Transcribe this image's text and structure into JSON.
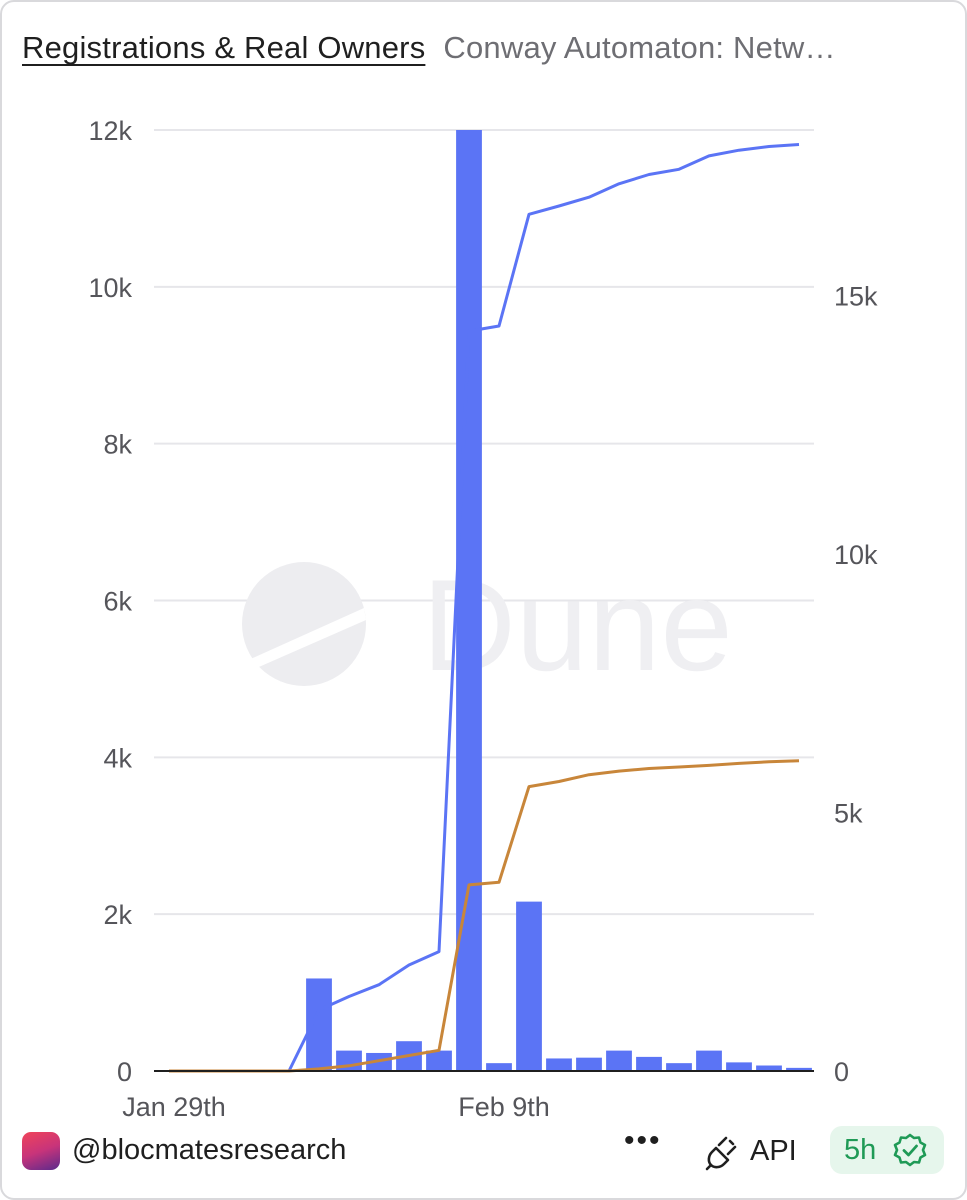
{
  "tabs": {
    "active": "Registrations & Real Owners",
    "inactive": "Conway Automaton: Netw…"
  },
  "watermark": "Dune",
  "footer": {
    "handle": "@blocmatesresearch",
    "more": "•••",
    "api_label": "API",
    "freshness": "5h",
    "api_icon": "plug-icon",
    "fresh_icon": "verified-check-icon"
  },
  "colors": {
    "bar": "#5b74f5",
    "line_blue": "#5b74f5",
    "line_orange": "#c8863a",
    "grid": "#e6e6ea",
    "axis_text": "#55555a"
  },
  "chart_data": {
    "type": "bar",
    "x_tick_labels": [
      {
        "index": 0,
        "label": "Jan 29th"
      },
      {
        "index": 11,
        "label": "Feb 9th"
      }
    ],
    "left_axis": {
      "ylim": [
        0,
        12000
      ],
      "ticks": [
        0,
        2000,
        4000,
        6000,
        8000,
        10000,
        12000
      ],
      "tick_labels": [
        "0",
        "2k",
        "4k",
        "6k",
        "8k",
        "10k",
        "12k"
      ]
    },
    "right_axis": {
      "ylim": [
        0,
        18200
      ],
      "ticks": [
        0,
        5000,
        10000,
        15000
      ],
      "tick_labels": [
        "0",
        "5k",
        "10k",
        "15k"
      ]
    },
    "grid": true,
    "legend": "none",
    "bars": {
      "axis": "left",
      "values": [
        0,
        0,
        0,
        0,
        0,
        1180,
        260,
        230,
        380,
        260,
        12000,
        100,
        2160,
        160,
        170,
        260,
        180,
        100,
        260,
        110,
        70,
        40
      ]
    },
    "lines": [
      {
        "axis": "right",
        "color_key": "line_blue",
        "values": [
          0,
          0,
          0,
          0,
          0,
          1180,
          1440,
          1670,
          2050,
          2310,
          14310,
          14410,
          16570,
          16730,
          16900,
          17160,
          17340,
          17440,
          17700,
          17810,
          17880,
          17920
        ]
      },
      {
        "axis": "right",
        "color_key": "line_orange",
        "values": [
          0,
          0,
          0,
          0,
          0,
          40,
          100,
          200,
          300,
          400,
          3600,
          3650,
          5500,
          5600,
          5730,
          5800,
          5850,
          5880,
          5910,
          5950,
          5980,
          6000
        ]
      }
    ]
  }
}
